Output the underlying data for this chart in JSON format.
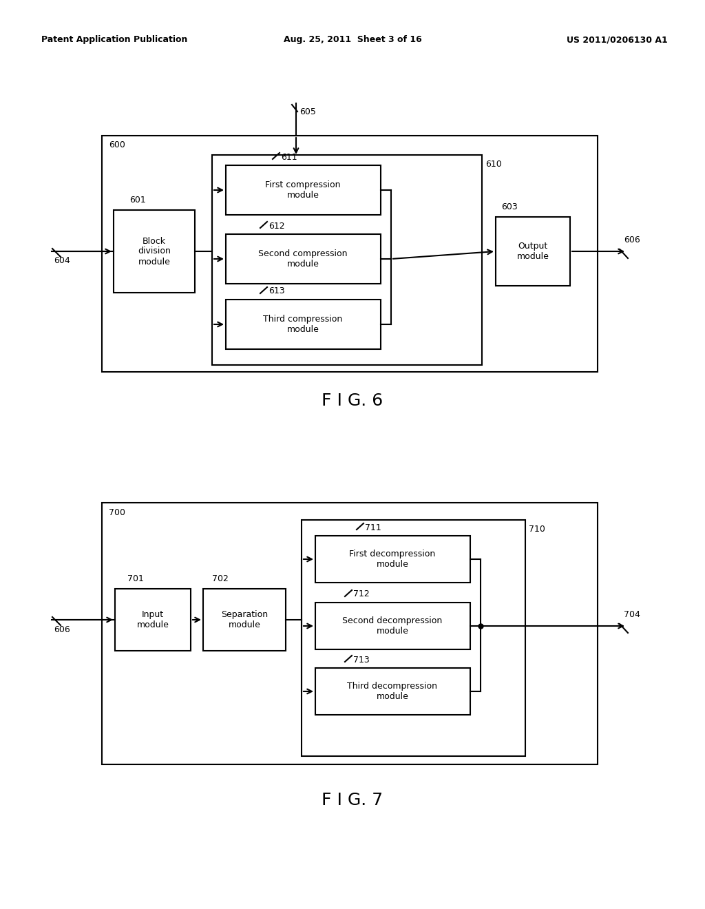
{
  "bg_color": "#ffffff",
  "header_left": "Patent Application Publication",
  "header_mid": "Aug. 25, 2011  Sheet 3 of 16",
  "header_right": "US 2011/0206130 A1",
  "fig6": {
    "caption": "F I G. 6",
    "label_outer": "600",
    "label_input": "605",
    "label_inner": "610",
    "label_block": "601",
    "label_611": "611",
    "label_612": "612",
    "label_613": "613",
    "label_output_module": "603",
    "label_in_arrow": "604",
    "label_out_arrow": "606",
    "block_div_text": "Block\ndivision\nmodule",
    "compress1_text": "First compression\nmodule",
    "compress2_text": "Second compression\nmodule",
    "compress3_text": "Third compression\nmodule",
    "output_text": "Output\nmodule"
  },
  "fig7": {
    "caption": "F I G. 7",
    "label_outer": "700",
    "label_inner": "710",
    "label_input_mod": "701",
    "label_sep_mod": "702",
    "label_711": "711",
    "label_712": "712",
    "label_713": "713",
    "label_out_arrow": "704",
    "label_in_arrow": "606",
    "input_text": "Input\nmodule",
    "sep_text": "Separation\nmodule",
    "decomp1_text": "First decompression\nmodule",
    "decomp2_text": "Second decompression\nmodule",
    "decomp3_text": "Third decompression\nmodule"
  }
}
